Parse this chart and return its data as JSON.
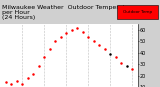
{
  "title": "Milwaukee Weather  Outdoor Temperature\nper Hour\n(24 Hours)",
  "hours": [
    1,
    2,
    3,
    4,
    5,
    6,
    7,
    8,
    9,
    10,
    11,
    12,
    13,
    14,
    15,
    16,
    17,
    18,
    19,
    20,
    21,
    22,
    23,
    24
  ],
  "temps": [
    14,
    13,
    15,
    13,
    18,
    21,
    28,
    36,
    43,
    50,
    54,
    57,
    60,
    62,
    58,
    54,
    50,
    47,
    43,
    39,
    36,
    31,
    28,
    26
  ],
  "dot_colors": [
    "red",
    "red",
    "red",
    "red",
    "red",
    "red",
    "red",
    "red",
    "red",
    "red",
    "red",
    "red",
    "red",
    "red",
    "red",
    "red",
    "red",
    "red",
    "red",
    "black",
    "red",
    "red",
    "black",
    "red"
  ],
  "bg_color": "#d0d0d0",
  "plot_bg": "#ffffff",
  "grid_color": "#888888",
  "dot_color_main": "#cc0000",
  "legend_fill": "#ff0000",
  "legend_label": "Outdoor Temp",
  "ylim": [
    10,
    65
  ],
  "xlim": [
    0,
    25
  ],
  "ytick_vals": [
    10,
    20,
    30,
    40,
    50,
    60
  ],
  "ytick_labels": [
    "10",
    "20",
    "30",
    "40",
    "50",
    "60"
  ],
  "xtick_vals": [
    1,
    3,
    5,
    7,
    9,
    11,
    13,
    15,
    17,
    19,
    21,
    23
  ],
  "xtick_labels": [
    "1",
    "3",
    "5",
    "7",
    "9",
    "11",
    "13",
    "15",
    "17",
    "19",
    "21",
    "23"
  ],
  "vgrid_positions": [
    4,
    8,
    12,
    16,
    20,
    24
  ],
  "title_fontsize": 4.5,
  "tick_fontsize": 3.5,
  "dot_size": 1.8
}
